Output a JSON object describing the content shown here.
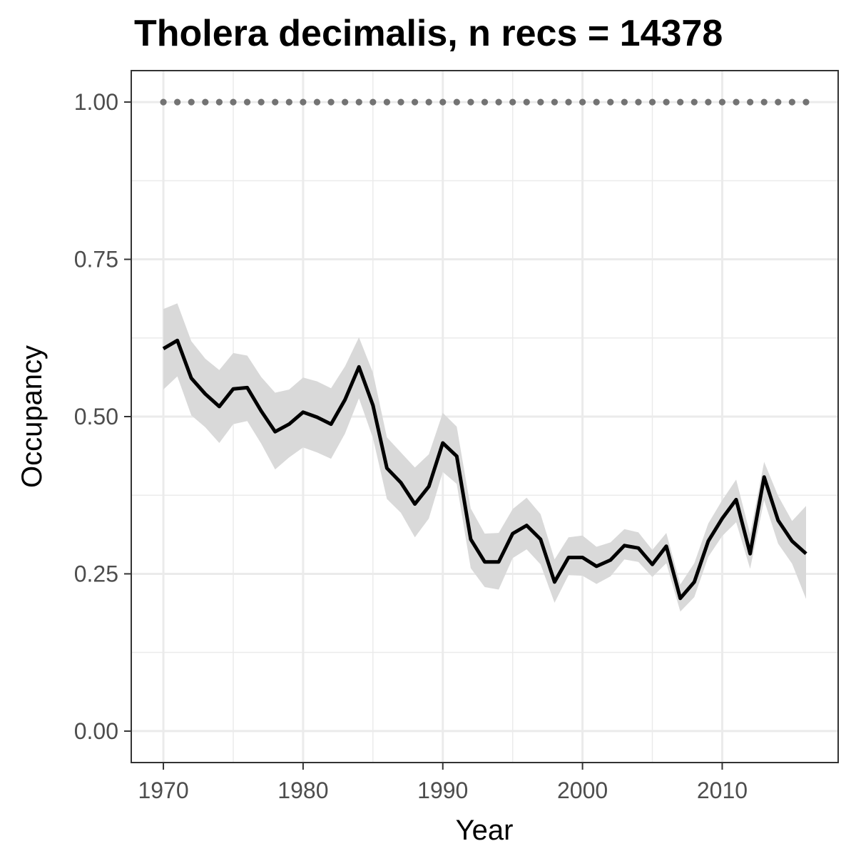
{
  "chart_data": {
    "type": "line",
    "title": "Tholera decimalis, n recs = 14378",
    "xlabel": "Year",
    "ylabel": "Occupancy",
    "xlim": [
      1967.7,
      2018.3
    ],
    "ylim": [
      -0.05,
      1.05
    ],
    "x_ticks": [
      1970,
      1980,
      1990,
      2000,
      2010
    ],
    "x_tick_labels": [
      "1970",
      "1980",
      "1990",
      "2000",
      "2010"
    ],
    "y_ticks": [
      0.0,
      0.25,
      0.5,
      0.75,
      1.0
    ],
    "y_tick_labels": [
      "0.00",
      "0.25",
      "0.50",
      "0.75",
      "1.00"
    ],
    "grid": true,
    "colors": {
      "line": "#000000",
      "ribbon": "#d9d9d9",
      "reference_dots": "#737373",
      "grid": "#ebebeb",
      "panel_border": "#333333"
    },
    "series": [
      {
        "x": [
          1970,
          1971,
          1972,
          1973,
          1974,
          1975,
          1976,
          1977,
          1978,
          1979,
          1980,
          1981,
          1982,
          1983,
          1984,
          1985,
          1986,
          1987,
          1988,
          1989,
          1990,
          1991,
          1992,
          1993,
          1994,
          1995,
          1996,
          1997,
          1998,
          1999,
          2000,
          2001,
          2002,
          2003,
          2004,
          2005,
          2006,
          2007,
          2008,
          2009,
          2010,
          2011,
          2012,
          2013,
          2014,
          2015,
          2016
        ],
        "values": [
          0.608,
          0.621,
          0.561,
          0.536,
          0.516,
          0.544,
          0.546,
          0.509,
          0.476,
          0.488,
          0.507,
          0.499,
          0.488,
          0.527,
          0.579,
          0.518,
          0.418,
          0.395,
          0.361,
          0.389,
          0.458,
          0.437,
          0.305,
          0.269,
          0.269,
          0.314,
          0.327,
          0.305,
          0.237,
          0.276,
          0.276,
          0.262,
          0.272,
          0.295,
          0.291,
          0.265,
          0.294,
          0.211,
          0.237,
          0.302,
          0.338,
          0.368,
          0.282,
          0.404,
          0.335,
          0.302,
          0.282
        ],
        "lower": [
          0.543,
          0.564,
          0.502,
          0.483,
          0.458,
          0.488,
          0.493,
          0.457,
          0.416,
          0.435,
          0.451,
          0.443,
          0.433,
          0.473,
          0.529,
          0.466,
          0.369,
          0.347,
          0.308,
          0.338,
          0.412,
          0.393,
          0.259,
          0.229,
          0.225,
          0.275,
          0.289,
          0.265,
          0.204,
          0.248,
          0.247,
          0.234,
          0.246,
          0.273,
          0.269,
          0.245,
          0.267,
          0.19,
          0.213,
          0.277,
          0.31,
          0.332,
          0.258,
          0.367,
          0.298,
          0.266,
          0.21
        ],
        "upper": [
          0.671,
          0.68,
          0.62,
          0.592,
          0.574,
          0.601,
          0.597,
          0.563,
          0.538,
          0.543,
          0.562,
          0.556,
          0.545,
          0.58,
          0.626,
          0.57,
          0.467,
          0.443,
          0.419,
          0.44,
          0.506,
          0.484,
          0.354,
          0.314,
          0.315,
          0.353,
          0.371,
          0.345,
          0.273,
          0.308,
          0.311,
          0.293,
          0.3,
          0.321,
          0.316,
          0.288,
          0.315,
          0.233,
          0.267,
          0.33,
          0.367,
          0.4,
          0.313,
          0.428,
          0.374,
          0.334,
          0.358
        ]
      },
      {
        "x": [
          1970,
          1971,
          1972,
          1973,
          1974,
          1975,
          1976,
          1977,
          1978,
          1979,
          1980,
          1981,
          1982,
          1983,
          1984,
          1985,
          1986,
          1987,
          1988,
          1989,
          1990,
          1991,
          1992,
          1993,
          1994,
          1995,
          1996,
          1997,
          1998,
          1999,
          2000,
          2001,
          2002,
          2003,
          2004,
          2005,
          2006,
          2007,
          2008,
          2009,
          2010,
          2011,
          2012,
          2013,
          2014,
          2015,
          2016
        ],
        "values": [
          1,
          1,
          1,
          1,
          1,
          1,
          1,
          1,
          1,
          1,
          1,
          1,
          1,
          1,
          1,
          1,
          1,
          1,
          1,
          1,
          1,
          1,
          1,
          1,
          1,
          1,
          1,
          1,
          1,
          1,
          1,
          1,
          1,
          1,
          1,
          1,
          1,
          1,
          1,
          1,
          1,
          1,
          1,
          1,
          1,
          1,
          1
        ]
      }
    ]
  }
}
